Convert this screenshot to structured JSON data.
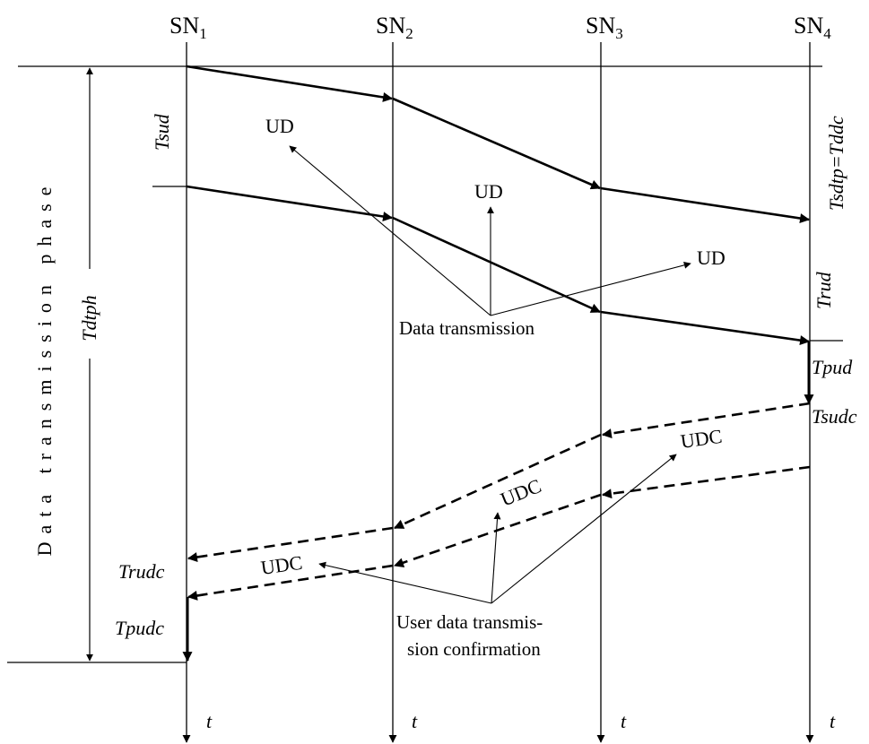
{
  "nodes": [
    {
      "base": "SN",
      "sub": "1"
    },
    {
      "base": "SN",
      "sub": "2"
    },
    {
      "base": "SN",
      "sub": "3"
    },
    {
      "base": "SN",
      "sub": "4"
    }
  ],
  "axis_label": "t",
  "phase_label": "Data transmission phase",
  "phase_symbol": "Tdtph",
  "timing_labels": {
    "tsud": "Tsud",
    "tsdtp": "Tsdtp=Tddc",
    "trud": "Trud",
    "tpud": "Tpud",
    "tsudc": "Tsudc",
    "trudc": "Trudc",
    "tpudc": "Tpudc"
  },
  "message_labels": {
    "ud": "UD",
    "udc": "UDC"
  },
  "captions": {
    "data_transmission": "Data transmission",
    "confirmation_line1": "User data transmis-",
    "confirmation_line2": "sion confirmation"
  }
}
